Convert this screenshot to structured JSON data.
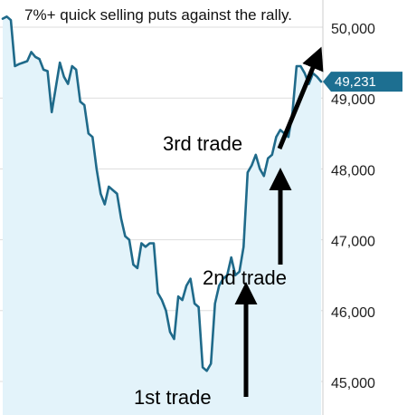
{
  "chart_data": {
    "type": "line",
    "title": "7%+ quick selling puts against the rally.",
    "xlabel": "",
    "ylabel": "",
    "ylim": [
      45000,
      50500
    ],
    "y_ticks": [
      45000,
      46000,
      47000,
      48000,
      49000,
      50000
    ],
    "y_tick_labels": [
      "45,000",
      "46,000",
      "47,000",
      "48,000",
      "49,000",
      "50,000"
    ],
    "grid": true,
    "line_color": "#1f6a8a",
    "fill_color": "#e3f3fa",
    "callout_color": "#1d6f91",
    "last_value_label": "49,231",
    "last_value": 49231,
    "series": [
      {
        "values": [
          50120,
          50150,
          50100,
          49450,
          49480,
          49500,
          49520,
          49650,
          49580,
          49550,
          49400,
          49380,
          48800,
          49150,
          49500,
          49300,
          49200,
          49450,
          49400,
          48950,
          48900,
          48500,
          48450,
          48000,
          47650,
          47500,
          47750,
          47700,
          47650,
          47300,
          47050,
          47000,
          46650,
          46600,
          46950,
          46900,
          46950,
          46950,
          46250,
          46150,
          46000,
          45700,
          45600,
          46200,
          46150,
          46350,
          46450,
          46100,
          46050,
          45200,
          45150,
          45250,
          46100,
          46350,
          46450,
          46500,
          46750,
          46500,
          46550,
          46900,
          47950,
          48050,
          48200,
          48000,
          47900,
          48150,
          48200,
          48450,
          48550,
          48500,
          48450,
          48800,
          49450,
          49450,
          49350,
          49200,
          49350,
          49300,
          49231
        ]
      }
    ],
    "annotations": [
      {
        "text": "1st trade",
        "point_index": 50
      },
      {
        "text": "2nd trade",
        "point_index": 57
      },
      {
        "text": "3rd trade",
        "point_index": 68
      }
    ]
  }
}
